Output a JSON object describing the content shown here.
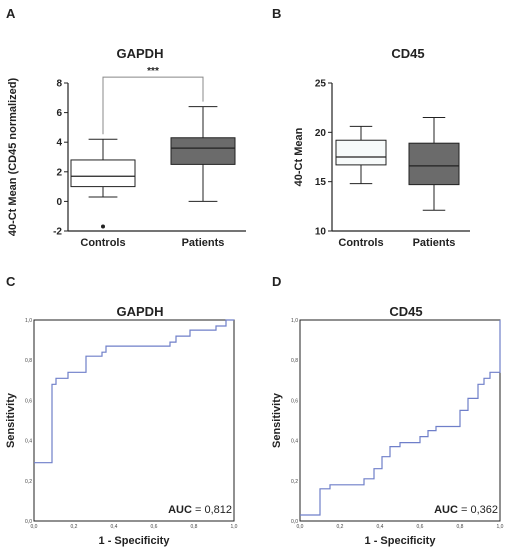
{
  "chart_data": [
    {
      "panel": "A",
      "type": "box",
      "title": "GAPDH",
      "ylabel": "40-Ct Mean (CD45 normalized)",
      "ylim": [
        -2,
        8
      ],
      "yticks": [
        "-2",
        "0",
        "2",
        "4",
        "6",
        "8"
      ],
      "categories": [
        "Controls",
        "Patients"
      ],
      "boxes": [
        {
          "min": 0.3,
          "q1": 1.0,
          "median": 1.7,
          "q3": 2.8,
          "max": 4.2,
          "outliers": [
            -1.7
          ],
          "color": "#ffffff"
        },
        {
          "min": 0.0,
          "q1": 2.5,
          "median": 3.6,
          "q3": 4.3,
          "max": 6.4,
          "outliers": [],
          "color": "#6b6b6b"
        }
      ],
      "annotation": "***",
      "bracket_y": 8.4
    },
    {
      "panel": "B",
      "type": "box",
      "title": "CD45",
      "ylabel": "40-Ct Mean",
      "ylim": [
        10,
        25
      ],
      "yticks": [
        "10",
        "15",
        "20",
        "25"
      ],
      "categories": [
        "Controls",
        "Patients"
      ],
      "boxes": [
        {
          "min": 14.8,
          "q1": 16.7,
          "median": 17.5,
          "q3": 19.2,
          "max": 20.6,
          "outliers": [],
          "color": "#f7fafa"
        },
        {
          "min": 12.1,
          "q1": 14.7,
          "median": 16.6,
          "q3": 18.9,
          "max": 21.5,
          "outliers": [],
          "color": "#6b6b6b"
        }
      ]
    },
    {
      "panel": "C",
      "type": "line",
      "title": "GAPDH",
      "xlabel": "1 - Specificity",
      "ylabel": "Sensitivity",
      "xlim": [
        0,
        1
      ],
      "ylim": [
        0,
        1
      ],
      "ticks": [
        "0,0",
        "0,2",
        "0,4",
        "0,6",
        "0,8",
        "1,0"
      ],
      "auc_label": "AUC",
      "auc_value": "= 0,812",
      "roc": [
        [
          0,
          0.29
        ],
        [
          0.09,
          0.29
        ],
        [
          0.09,
          0.68
        ],
        [
          0.11,
          0.68
        ],
        [
          0.11,
          0.71
        ],
        [
          0.17,
          0.71
        ],
        [
          0.17,
          0.74
        ],
        [
          0.21,
          0.74
        ],
        [
          0.26,
          0.74
        ],
        [
          0.26,
          0.82
        ],
        [
          0.34,
          0.82
        ],
        [
          0.34,
          0.84
        ],
        [
          0.36,
          0.84
        ],
        [
          0.36,
          0.87
        ],
        [
          0.68,
          0.87
        ],
        [
          0.68,
          0.89
        ],
        [
          0.71,
          0.89
        ],
        [
          0.71,
          0.92
        ],
        [
          0.78,
          0.92
        ],
        [
          0.78,
          0.95
        ],
        [
          0.91,
          0.95
        ],
        [
          0.91,
          0.97
        ],
        [
          0.96,
          0.97
        ],
        [
          0.96,
          1.0
        ],
        [
          1.0,
          1.0
        ]
      ],
      "line_color": "#6f7fc9"
    },
    {
      "panel": "D",
      "type": "line",
      "title": "CD45",
      "xlabel": "1 - Specificity",
      "ylabel": "Sensitivity",
      "xlim": [
        0,
        1
      ],
      "ylim": [
        0,
        1
      ],
      "ticks": [
        "0,0",
        "0,2",
        "0,4",
        "0,6",
        "0,8",
        "1,0"
      ],
      "auc_label": "AUC",
      "auc_value": "= 0,362",
      "roc": [
        [
          0,
          0.03
        ],
        [
          0.1,
          0.03
        ],
        [
          0.1,
          0.16
        ],
        [
          0.15,
          0.16
        ],
        [
          0.15,
          0.18
        ],
        [
          0.32,
          0.18
        ],
        [
          0.32,
          0.21
        ],
        [
          0.37,
          0.21
        ],
        [
          0.37,
          0.26
        ],
        [
          0.41,
          0.26
        ],
        [
          0.41,
          0.32
        ],
        [
          0.45,
          0.32
        ],
        [
          0.45,
          0.37
        ],
        [
          0.5,
          0.37
        ],
        [
          0.5,
          0.39
        ],
        [
          0.6,
          0.39
        ],
        [
          0.6,
          0.42
        ],
        [
          0.64,
          0.42
        ],
        [
          0.64,
          0.45
        ],
        [
          0.68,
          0.45
        ],
        [
          0.68,
          0.47
        ],
        [
          0.8,
          0.47
        ],
        [
          0.8,
          0.55
        ],
        [
          0.84,
          0.55
        ],
        [
          0.84,
          0.61
        ],
        [
          0.89,
          0.61
        ],
        [
          0.89,
          0.68
        ],
        [
          0.92,
          0.68
        ],
        [
          0.92,
          0.71
        ],
        [
          0.95,
          0.71
        ],
        [
          0.95,
          0.74
        ],
        [
          1.0,
          0.74
        ],
        [
          1.0,
          1.0
        ]
      ],
      "line_color": "#6f7fc9"
    }
  ]
}
